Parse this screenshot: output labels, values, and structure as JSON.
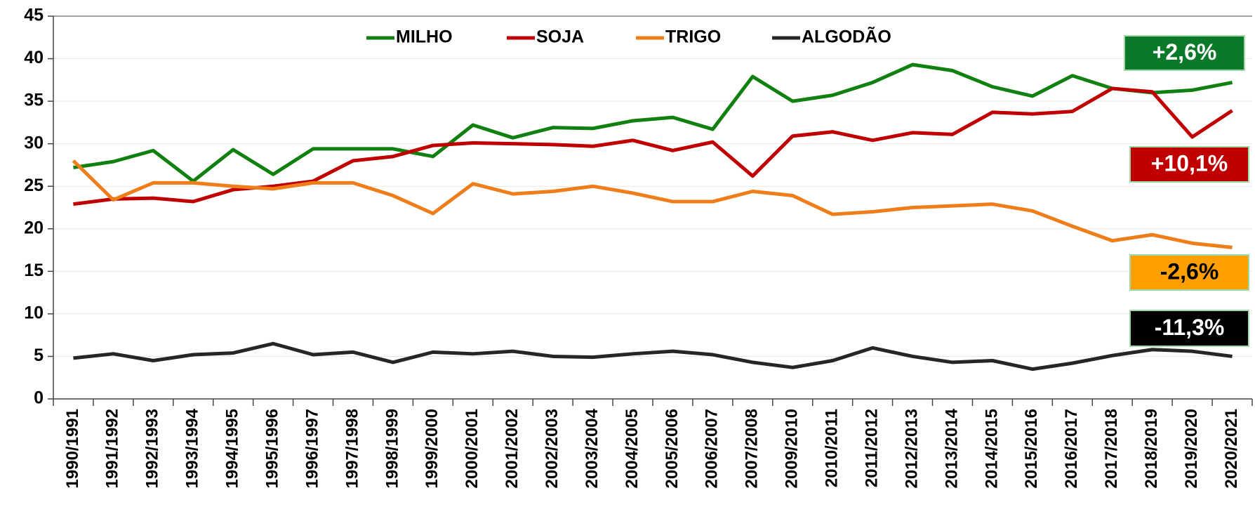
{
  "chart_data": {
    "type": "line",
    "categories": [
      "1990/1991",
      "1991/1992",
      "1992/1993",
      "1993/1994",
      "1994/1995",
      "1995/1996",
      "1996/1997",
      "1997/1998",
      "1998/1999",
      "1999/2000",
      "2000/2001",
      "2001/2002",
      "2002/2003",
      "2003/2004",
      "2004/2005",
      "2005/2006",
      "2006/2007",
      "2007/2008",
      "2009/2010",
      "2010/2011",
      "2011/2012",
      "2012/2013",
      "2013/2014",
      "2014/2015",
      "2015/2016",
      "2016/2017",
      "2017/2018",
      "2018/2019",
      "2019/2020",
      "2020/2021"
    ],
    "series": [
      {
        "name": "MILHO",
        "color": "#108010",
        "values": [
          27.2,
          27.9,
          29.2,
          25.6,
          29.3,
          26.4,
          29.4,
          29.4,
          29.4,
          28.5,
          32.2,
          30.7,
          31.9,
          31.8,
          32.7,
          33.1,
          31.7,
          37.9,
          35.0,
          35.7,
          37.2,
          39.3,
          38.6,
          36.7,
          35.6,
          38.0,
          36.5,
          36.0,
          36.3,
          37.2
        ]
      },
      {
        "name": "SOJA",
        "color": "#c00000",
        "values": [
          22.9,
          23.5,
          23.6,
          23.2,
          24.6,
          25.0,
          25.6,
          28.0,
          28.5,
          29.8,
          30.1,
          30.0,
          29.9,
          29.7,
          30.4,
          29.2,
          30.2,
          26.2,
          30.9,
          31.4,
          30.4,
          31.3,
          31.1,
          33.7,
          33.5,
          33.8,
          36.5,
          36.1,
          30.8,
          33.9
        ]
      },
      {
        "name": "TRIGO",
        "color": "#ee7d1a",
        "values": [
          28.0,
          23.4,
          25.4,
          25.4,
          25.0,
          24.7,
          25.4,
          25.4,
          23.9,
          21.8,
          25.3,
          24.1,
          24.4,
          25.0,
          24.2,
          23.2,
          23.2,
          24.4,
          23.9,
          21.7,
          22.0,
          22.5,
          22.7,
          22.9,
          22.1,
          20.3,
          18.6,
          19.3,
          18.3,
          17.8
        ]
      },
      {
        "name": "ALGODÃO",
        "color": "#262626",
        "values": [
          4.8,
          5.3,
          4.5,
          5.2,
          5.4,
          6.5,
          5.2,
          5.5,
          4.3,
          5.5,
          5.3,
          5.6,
          5.0,
          4.9,
          5.3,
          5.6,
          5.2,
          4.3,
          3.7,
          4.5,
          6.0,
          5.0,
          4.3,
          4.5,
          3.5,
          4.2,
          5.1,
          5.8,
          5.6,
          5.0
        ]
      }
    ],
    "ylim": [
      0,
      45
    ],
    "yticks": [
      0,
      5,
      10,
      15,
      20,
      25,
      30,
      35,
      40,
      45
    ],
    "grid": true,
    "annotations": [
      {
        "text": "+2,6%",
        "color": "#0a7a2a",
        "text_color": "#ffffff"
      },
      {
        "text": "+10,1%",
        "color": "#c00000",
        "text_color": "#ffffff"
      },
      {
        "text": "-2,6%",
        "color": "#ffa000",
        "text_color": "#000000"
      },
      {
        "text": "-11,3%",
        "color": "#000000",
        "text_color": "#ffffff"
      }
    ]
  }
}
